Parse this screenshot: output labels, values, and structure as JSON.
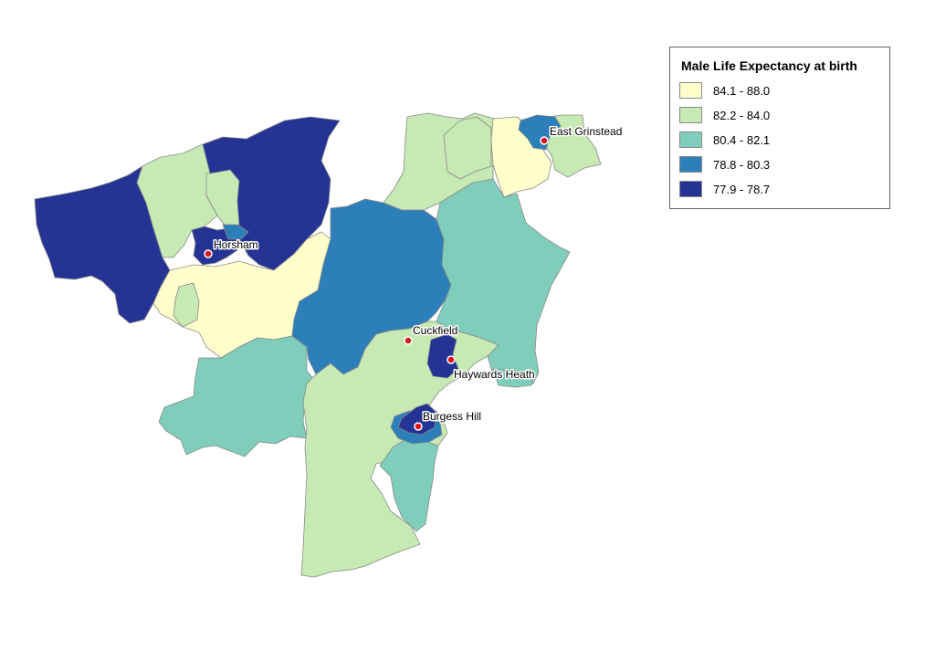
{
  "legend": {
    "title": "Male Life Expectancy at birth",
    "classes": [
      {
        "label": "84.1 - 88.0",
        "color": "#ffffcc"
      },
      {
        "label": "82.2 - 84.0",
        "color": "#c7e9b4"
      },
      {
        "label": "80.4 - 82.1",
        "color": "#7fcdbb"
      },
      {
        "label": "78.8 - 80.3",
        "color": "#2c7fb8"
      },
      {
        "label": "77.9 - 78.7",
        "color": "#253494"
      }
    ]
  },
  "towns": [
    {
      "name": "Horsham"
    },
    {
      "name": "East Grinstead"
    },
    {
      "name": "Cuckfield"
    },
    {
      "name": "Haywards Heath"
    },
    {
      "name": "Burgess Hill"
    }
  ]
}
